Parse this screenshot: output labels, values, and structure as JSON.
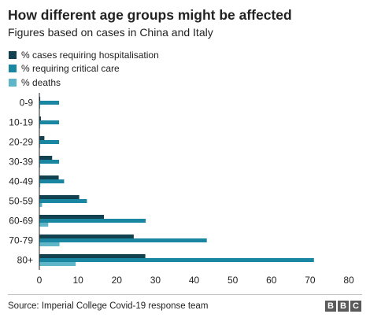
{
  "title": "How different age groups might be affected",
  "subtitle": "Figures based on cases in China and Italy",
  "source": "Source: Imperial College Covid-19 response team",
  "logo": {
    "text": "BBC",
    "letters": [
      "B",
      "B",
      "C"
    ]
  },
  "colors": {
    "hospitalisation": "#12414f",
    "critical_care": "#1a87a2",
    "deaths": "#5fb6c9",
    "axis": "#222222",
    "grid": "#ffffff"
  },
  "legend": [
    {
      "label": "% cases requiring hospitalisation",
      "color": "#12414f"
    },
    {
      "label": "% requiring critical care",
      "color": "#1a87a2"
    },
    {
      "label": "% deaths",
      "color": "#5fb6c9"
    }
  ],
  "chart_data": {
    "type": "bar",
    "orientation": "horizontal",
    "categories": [
      "0-9",
      "10-19",
      "20-29",
      "30-39",
      "40-49",
      "50-59",
      "60-69",
      "70-79",
      "80+"
    ],
    "series": [
      {
        "name": "% cases requiring hospitalisation",
        "values": [
          0.1,
          0.3,
          1.2,
          3.2,
          4.9,
          10.2,
          16.6,
          24.3,
          27.3
        ]
      },
      {
        "name": "% requiring critical care",
        "values": [
          5.0,
          5.0,
          5.0,
          5.0,
          6.3,
          12.2,
          27.4,
          43.2,
          70.9
        ]
      },
      {
        "name": "% deaths",
        "values": [
          0.002,
          0.006,
          0.03,
          0.08,
          0.15,
          0.6,
          2.2,
          5.1,
          9.3
        ]
      }
    ],
    "xlim": [
      0,
      80
    ],
    "xticks": [
      0,
      10,
      20,
      30,
      40,
      50,
      60,
      70,
      80
    ],
    "legend_position": "top-left",
    "grid": false
  }
}
